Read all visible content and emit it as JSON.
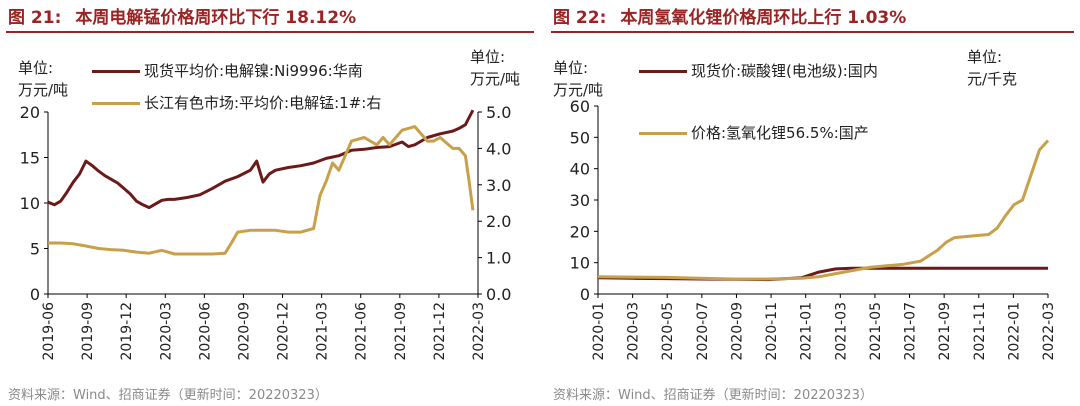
{
  "chart_data": [
    {
      "type": "line",
      "figure_label": "图 21:",
      "title": "本周电解锰价格周环比下行 18.12%",
      "left_unit": [
        "单位:",
        "万元/吨"
      ],
      "right_unit": [
        "单位:",
        "万元/吨"
      ],
      "left_ylim": [
        0,
        20
      ],
      "left_ticks": [
        "0",
        "5",
        "10",
        "15",
        "20"
      ],
      "right_ylim": [
        0,
        5
      ],
      "right_ticks": [
        "0.0",
        "1.0",
        "2.0",
        "3.0",
        "4.0",
        "5.0"
      ],
      "x_ticks": [
        "2019-06",
        "2019-09",
        "2019-12",
        "2020-03",
        "2020-06",
        "2020-09",
        "2020-12",
        "2021-03",
        "2021-06",
        "2021-09",
        "2021-12",
        "2022-03"
      ],
      "x_domain": [
        0,
        34
      ],
      "series": [
        {
          "name": "现货平均价:电解镍:Ni9996:华南",
          "axis": "left",
          "color": "#6b1a1a",
          "x": [
            0,
            0.5,
            1,
            1.5,
            2,
            2.5,
            3,
            3.5,
            4,
            4.5,
            5,
            5.5,
            6,
            6.5,
            7,
            7.5,
            8,
            8.5,
            9,
            9.5,
            10,
            11,
            12,
            13,
            14,
            15,
            16,
            16.5,
            17,
            17.5,
            18,
            19,
            20,
            21,
            22,
            23,
            24,
            25,
            26,
            27,
            28,
            28.5,
            29,
            30,
            31,
            32,
            32.5,
            33,
            33.3,
            33.6
          ],
          "values": [
            10.1,
            9.8,
            10.2,
            11.2,
            12.3,
            13.2,
            14.6,
            14.1,
            13.5,
            13.0,
            12.6,
            12.2,
            11.6,
            11.0,
            10.2,
            9.8,
            9.5,
            9.9,
            10.3,
            10.4,
            10.4,
            10.6,
            10.9,
            11.6,
            12.4,
            12.9,
            13.6,
            14.6,
            12.3,
            13.2,
            13.6,
            13.9,
            14.1,
            14.4,
            14.9,
            15.2,
            15.8,
            15.9,
            16.1,
            16.2,
            16.7,
            16.2,
            16.4,
            17.2,
            17.6,
            17.9,
            18.2,
            18.6,
            19.4,
            20.2
          ]
        },
        {
          "name": "长江有色市场:平均价:电解锰:1#:右",
          "axis": "right",
          "color": "#c9a04a",
          "x": [
            0,
            1,
            2,
            3,
            4,
            5,
            6,
            7,
            8,
            9,
            10,
            11,
            12,
            13,
            14,
            14.5,
            15,
            16,
            17,
            18,
            19,
            20,
            21,
            21.5,
            22,
            22.5,
            23,
            23.5,
            24,
            25,
            26,
            26.5,
            27,
            28,
            29,
            30,
            30.5,
            31,
            32,
            32.5,
            33,
            33.3,
            33.6
          ],
          "values": [
            1.4,
            1.4,
            1.38,
            1.32,
            1.25,
            1.22,
            1.2,
            1.15,
            1.12,
            1.2,
            1.1,
            1.1,
            1.1,
            1.1,
            1.12,
            1.4,
            1.7,
            1.75,
            1.75,
            1.75,
            1.7,
            1.7,
            1.8,
            2.7,
            3.1,
            3.6,
            3.4,
            3.8,
            4.2,
            4.3,
            4.1,
            4.3,
            4.1,
            4.5,
            4.6,
            4.2,
            4.2,
            4.3,
            4.0,
            4.0,
            3.8,
            3.1,
            2.3
          ]
        }
      ],
      "source": "资料来源：Wind、招商证券（更新时间：20220323）"
    },
    {
      "type": "line",
      "figure_label": "图 22:",
      "title": "本周氢氧化锂价格周环比上行 1.03%",
      "left_unit": [
        "单位:",
        "万元/吨"
      ],
      "right_unit": [
        "单位:",
        "元/千克"
      ],
      "left_ylim": [
        0,
        60
      ],
      "left_ticks": [
        "0",
        "10",
        "20",
        "30",
        "40",
        "50",
        "60"
      ],
      "x_ticks": [
        "2020-01",
        "2020-03",
        "2020-05",
        "2020-07",
        "2020-09",
        "2020-11",
        "2021-01",
        "2021-03",
        "2021-05",
        "2021-07",
        "2021-09",
        "2021-11",
        "2022-01",
        "2022-03"
      ],
      "x_domain": [
        0,
        26.5
      ],
      "series": [
        {
          "name": "现货价:碳酸锂(电池级):国内",
          "axis": "left",
          "color": "#6b1a1a",
          "x": [
            0,
            2,
            4,
            6,
            8,
            10,
            12,
            13,
            14,
            15,
            16,
            18,
            20,
            22,
            24,
            26,
            26.5
          ],
          "values": [
            5.2,
            5.0,
            4.9,
            4.8,
            4.7,
            4.6,
            5.2,
            7.0,
            8.0,
            8.2,
            8.2,
            8.2,
            8.2,
            8.2,
            8.2,
            8.2,
            8.2
          ]
        },
        {
          "name": "价格:氢氧化锂56.5%:国产",
          "axis": "left",
          "color": "#c9a04a",
          "x": [
            0,
            2,
            4,
            6,
            8,
            10,
            12,
            13,
            14,
            15,
            16,
            17,
            18,
            19,
            20,
            20.5,
            21,
            22,
            23,
            23.5,
            24,
            24.5,
            25,
            25.5,
            26,
            26.5
          ],
          "values": [
            5.5,
            5.4,
            5.3,
            5.0,
            4.8,
            4.8,
            5.0,
            5.5,
            6.5,
            7.5,
            8.5,
            9.0,
            9.5,
            10.5,
            14,
            16.5,
            18,
            18.5,
            19.0,
            21,
            25,
            28.5,
            30,
            38,
            46,
            49
          ]
        }
      ],
      "source": "资料来源：Wind、招商证券（更新时间：20220323）"
    }
  ]
}
